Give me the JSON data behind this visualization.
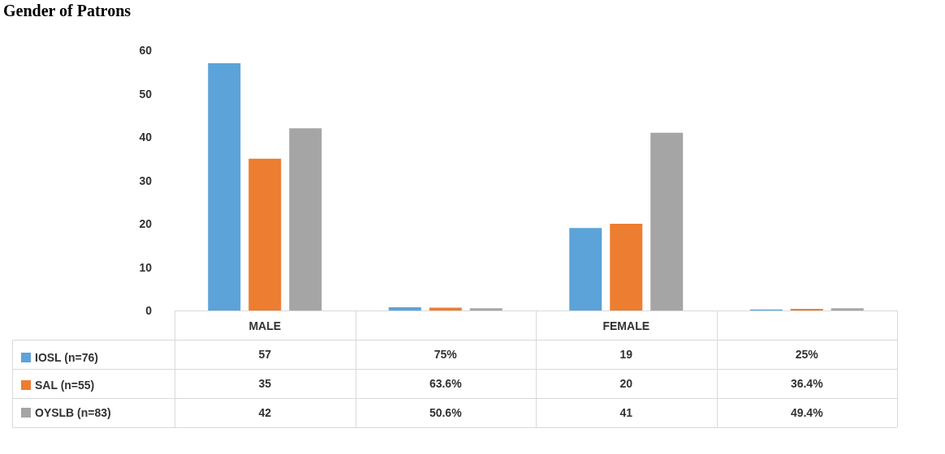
{
  "chart_data": {
    "type": "bar",
    "title": "Gender of Patrons",
    "categories": [
      "MALE",
      null,
      "FEMALE",
      null
    ],
    "series": [
      {
        "name": "IOSL (n=76)",
        "color": "#5ba3d9",
        "values": [
          57,
          0.75,
          19,
          0.25
        ],
        "value_labels": [
          "57",
          "75%",
          "19",
          "25%"
        ]
      },
      {
        "name": "SAL (n=55)",
        "color": "#ed7d31",
        "values": [
          35,
          0.636,
          20,
          0.364
        ],
        "value_labels": [
          "35",
          "63.6%",
          "20",
          "36.4%"
        ]
      },
      {
        "name": "OYSLB (n=83)",
        "color": "#a5a5a5",
        "values": [
          42,
          0.506,
          41,
          0.494
        ],
        "value_labels": [
          "42",
          "50.6%",
          "41",
          "49.4%"
        ]
      }
    ],
    "ylim": [
      0,
      60
    ],
    "yticks": [
      0,
      10,
      20,
      30,
      40,
      50,
      60
    ],
    "grid": false,
    "legend": "bottom left"
  }
}
